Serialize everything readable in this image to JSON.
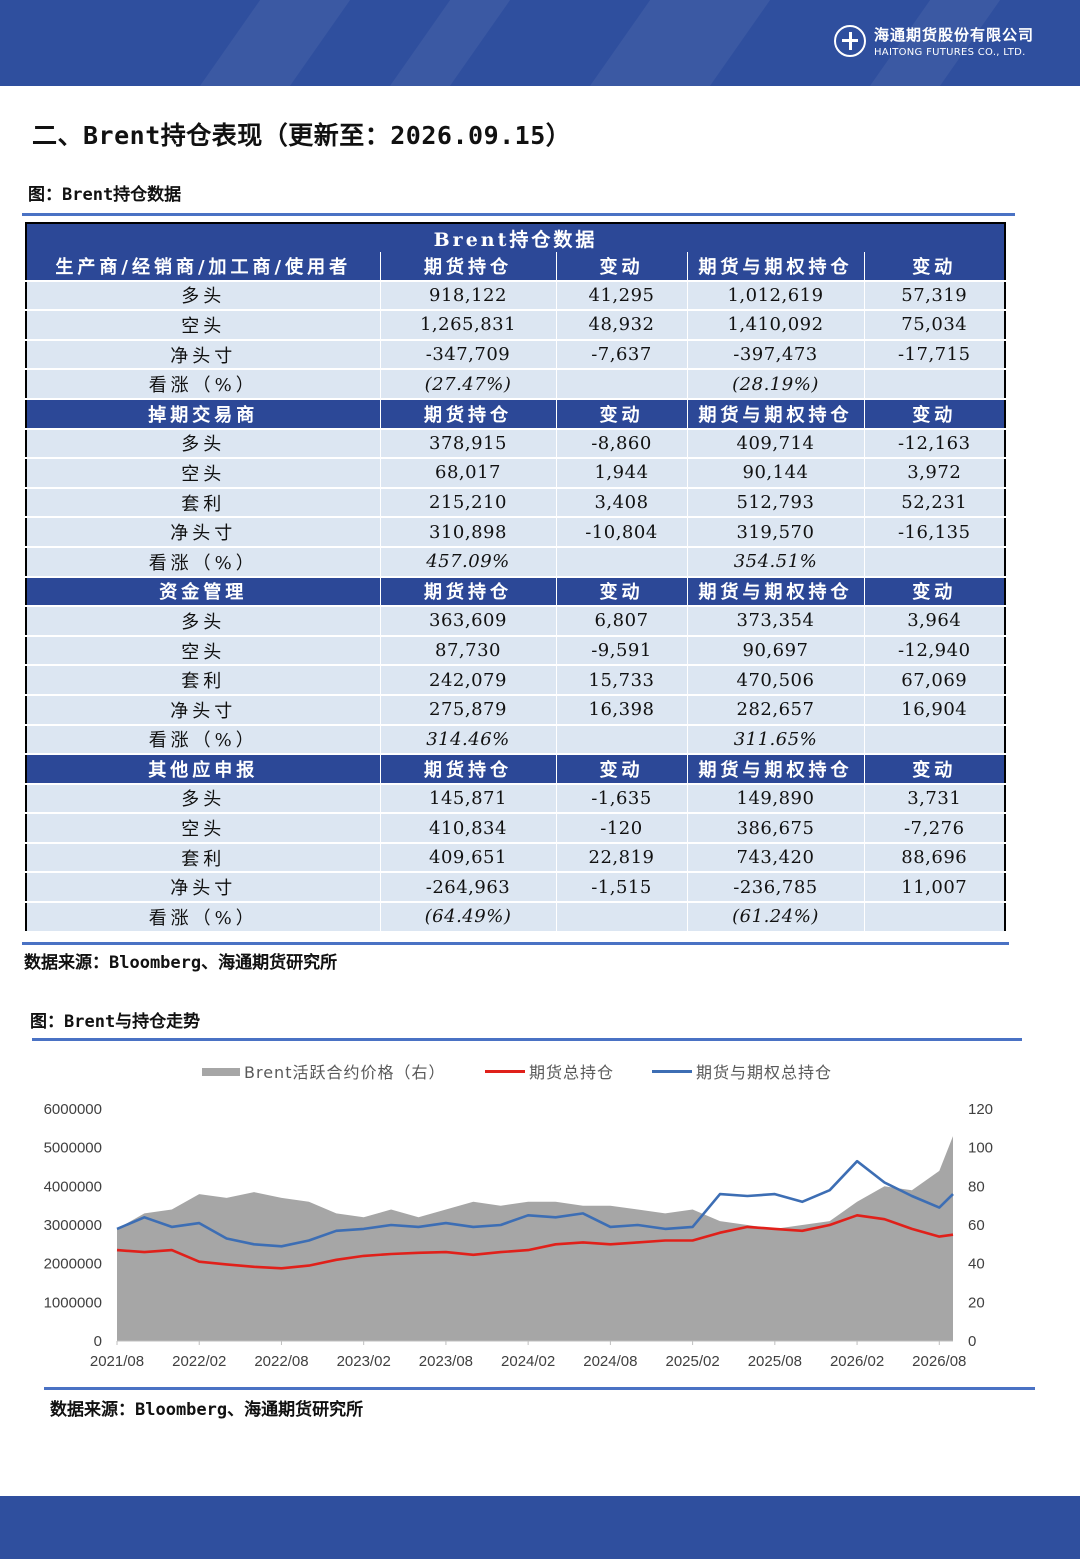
{
  "header": {
    "company_cn": "海通期货股份有限公司",
    "company_en": "HAITONG FUTURES CO., LTD."
  },
  "section_title": "二、Brent持仓表现（更新至：2026.09.15）",
  "figure1_caption": "图：Brent持仓数据",
  "table": {
    "title": "Brent持仓数据",
    "groups": [
      {
        "header": [
          "生产商/经销商/加工商/使用者",
          "期货持仓",
          "变动",
          "期货与期权持仓",
          "变动"
        ],
        "rows": [
          {
            "label": "多头",
            "cells": [
              "918,122",
              "41,295",
              "1,012,619",
              "57,319"
            ]
          },
          {
            "label": "空头",
            "cells": [
              "1,265,831",
              "48,932",
              "1,410,092",
              "75,034"
            ]
          },
          {
            "label": "净头寸",
            "cells": [
              "-347,709",
              "-7,637",
              "-397,473",
              "-17,715"
            ]
          },
          {
            "label": "看涨（%）",
            "cells": [
              "(27.47%)",
              "",
              "(28.19%)",
              ""
            ]
          }
        ]
      },
      {
        "header": [
          "掉期交易商",
          "期货持仓",
          "变动",
          "期货与期权持仓",
          "变动"
        ],
        "rows": [
          {
            "label": "多头",
            "cells": [
              "378,915",
              "-8,860",
              "409,714",
              "-12,163"
            ]
          },
          {
            "label": "空头",
            "cells": [
              "68,017",
              "1,944",
              "90,144",
              "3,972"
            ]
          },
          {
            "label": "套利",
            "cells": [
              "215,210",
              "3,408",
              "512,793",
              "52,231"
            ]
          },
          {
            "label": "净头寸",
            "cells": [
              "310,898",
              "-10,804",
              "319,570",
              "-16,135"
            ]
          },
          {
            "label": "看涨（%）",
            "cells": [
              "457.09%",
              "",
              "354.51%",
              ""
            ]
          }
        ]
      },
      {
        "header": [
          "资金管理",
          "期货持仓",
          "变动",
          "期货与期权持仓",
          "变动"
        ],
        "rows": [
          {
            "label": "多头",
            "cells": [
              "363,609",
              "6,807",
              "373,354",
              "3,964"
            ]
          },
          {
            "label": "空头",
            "cells": [
              "87,730",
              "-9,591",
              "90,697",
              "-12,940"
            ]
          },
          {
            "label": "套利",
            "cells": [
              "242,079",
              "15,733",
              "470,506",
              "67,069"
            ]
          },
          {
            "label": "净头寸",
            "cells": [
              "275,879",
              "16,398",
              "282,657",
              "16,904"
            ]
          },
          {
            "label": "看涨（%）",
            "cells": [
              "314.46%",
              "",
              "311.65%",
              ""
            ]
          }
        ]
      },
      {
        "header": [
          "其他应申报",
          "期货持仓",
          "变动",
          "期货与期权持仓",
          "变动"
        ],
        "rows": [
          {
            "label": "多头",
            "cells": [
              "145,871",
              "-1,635",
              "149,890",
              "3,731"
            ]
          },
          {
            "label": "空头",
            "cells": [
              "410,834",
              "-120",
              "386,675",
              "-7,276"
            ]
          },
          {
            "label": "套利",
            "cells": [
              "409,651",
              "22,819",
              "743,420",
              "88,696"
            ]
          },
          {
            "label": "净头寸",
            "cells": [
              "-264,963",
              "-1,515",
              "-236,785",
              "11,007"
            ]
          },
          {
            "label": "看涨（%）",
            "cells": [
              "(64.49%)",
              "",
              "(61.24%)",
              ""
            ]
          }
        ]
      }
    ]
  },
  "source1": "数据来源：Bloomberg、海通期货研究所",
  "figure2_caption": "图：Brent与持仓走势",
  "source2": "数据来源：Bloomberg、海通期货研究所",
  "colors": {
    "brand_blue": "#2f4f9e",
    "header_blue": "#2c4897",
    "row_fill": "#dce6f2",
    "negative_red": "#d0261f",
    "price_area": "#a6a6a6",
    "futures_line": "#e0201a",
    "options_line": "#3d6eb4"
  },
  "chart_data": {
    "type": "line",
    "legend": [
      "Brent活跃合约价格（右）",
      "期货总持仓",
      "期货与期权总持仓"
    ],
    "legend_position": "top",
    "grid": false,
    "x_ticks": [
      "2021/08",
      "2022/02",
      "2022/08",
      "2023/02",
      "2023/08",
      "2024/02",
      "2024/08",
      "2025/02",
      "2025/08",
      "2026/02",
      "2026/08"
    ],
    "x_range": [
      "2021/08",
      "2026/09"
    ],
    "y_left_ticks": [
      "0",
      "1000000",
      "2000000",
      "3000000",
      "4000000",
      "5000000",
      "6000000"
    ],
    "y_left_range": [
      0,
      6000000
    ],
    "y_right_ticks": [
      "0",
      "20",
      "40",
      "60",
      "80",
      "100",
      "120"
    ],
    "y_right_range": [
      0,
      120
    ],
    "x": [
      "2021/08",
      "2021/10",
      "2021/12",
      "2022/02",
      "2022/04",
      "2022/06",
      "2022/08",
      "2022/10",
      "2022/12",
      "2023/02",
      "2023/04",
      "2023/06",
      "2023/08",
      "2023/10",
      "2023/12",
      "2024/02",
      "2024/04",
      "2024/06",
      "2024/08",
      "2024/10",
      "2024/12",
      "2025/02",
      "2025/04",
      "2025/06",
      "2025/08",
      "2025/10",
      "2025/12",
      "2026/02",
      "2026/04",
      "2026/06",
      "2026/08",
      "2026/09"
    ],
    "series": [
      {
        "name": "Brent活跃合约价格（右）",
        "axis": "right",
        "style": "area",
        "values": [
          58,
          66,
          68,
          76,
          74,
          77,
          74,
          72,
          66,
          64,
          68,
          64,
          68,
          72,
          70,
          72,
          72,
          70,
          70,
          68,
          66,
          68,
          62,
          60,
          58,
          60,
          62,
          72,
          80,
          78,
          88,
          106
        ]
      },
      {
        "name": "期货总持仓",
        "axis": "left",
        "values": [
          2350000,
          2300000,
          2350000,
          2050000,
          1980000,
          1920000,
          1880000,
          1950000,
          2100000,
          2200000,
          2250000,
          2280000,
          2300000,
          2230000,
          2300000,
          2350000,
          2500000,
          2550000,
          2500000,
          2550000,
          2600000,
          2600000,
          2800000,
          2950000,
          2900000,
          2850000,
          3000000,
          3250000,
          3150000,
          2900000,
          2700000,
          2750000
        ]
      },
      {
        "name": "期货与期权总持仓",
        "axis": "left",
        "values": [
          2900000,
          3200000,
          2950000,
          3050000,
          2650000,
          2500000,
          2450000,
          2600000,
          2850000,
          2900000,
          3000000,
          2950000,
          3050000,
          2950000,
          3000000,
          3250000,
          3200000,
          3300000,
          2950000,
          3000000,
          2900000,
          2950000,
          3800000,
          3750000,
          3800000,
          3600000,
          3900000,
          4650000,
          4100000,
          3750000,
          3450000,
          3800000
        ]
      }
    ]
  }
}
